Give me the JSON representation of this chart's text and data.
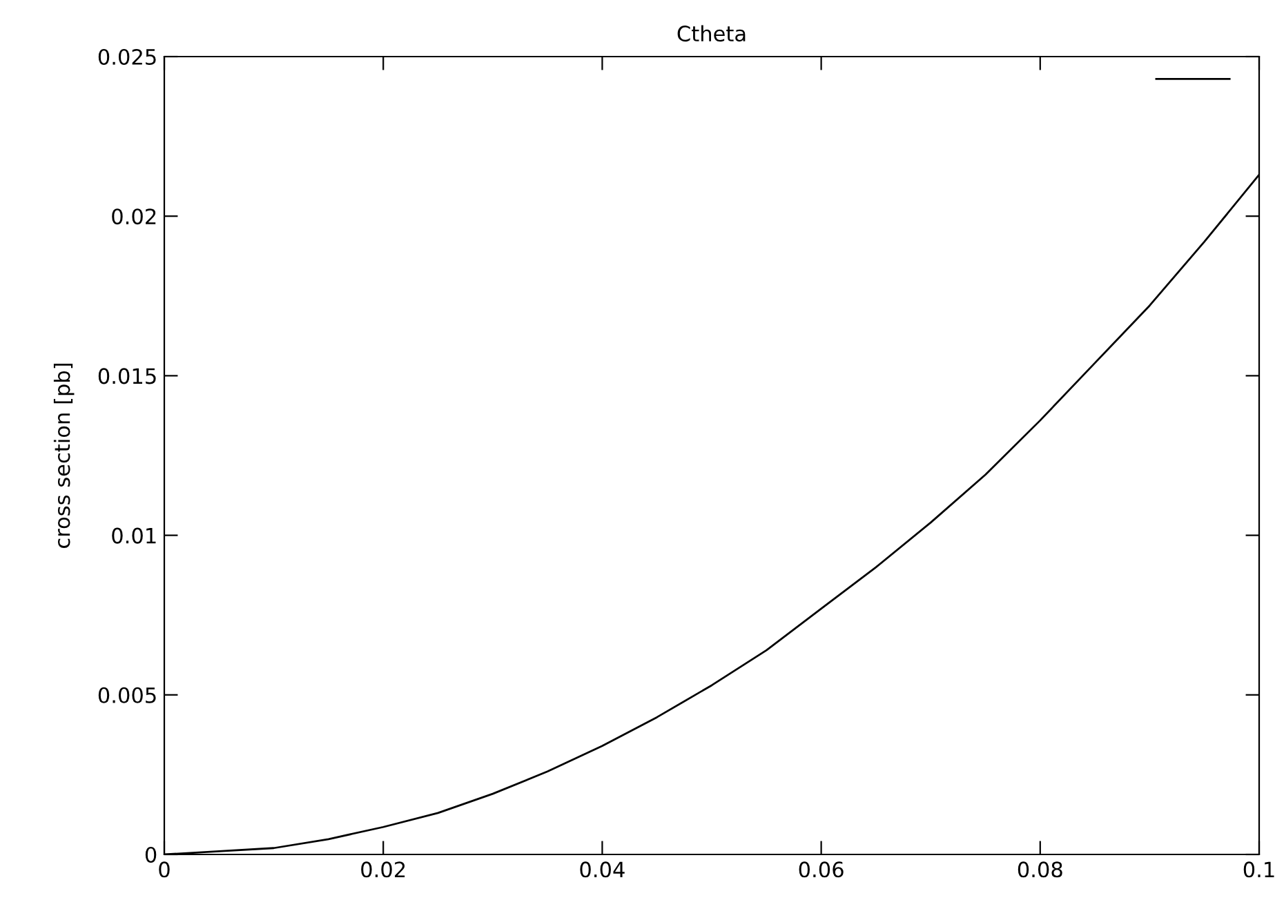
{
  "chart_data": {
    "type": "line",
    "title": "Ctheta",
    "ylabel": "cross section [pb]",
    "x": [
      0,
      0.005,
      0.01,
      0.015,
      0.02,
      0.025,
      0.03,
      0.035,
      0.04,
      0.045,
      0.05,
      0.055,
      0.06,
      0.065,
      0.07,
      0.075,
      0.08,
      0.085,
      0.09,
      0.095,
      0.1
    ],
    "series": [
      {
        "color": "#000000",
        "values": [
          0,
          0.0001,
          0.0002,
          0.00048,
          0.00086,
          0.0013,
          0.0019,
          0.0026,
          0.0034,
          0.0043,
          0.0053,
          0.0064,
          0.0077,
          0.009,
          0.0104,
          0.0119,
          0.0136,
          0.0154,
          0.0172,
          0.0192,
          0.0213
        ]
      }
    ],
    "xlim": [
      0,
      0.1
    ],
    "xticks": [
      0,
      0.02,
      0.04,
      0.06,
      0.08,
      0.1
    ],
    "ylim": [
      0,
      0.025
    ],
    "yticks": [
      0,
      0.005,
      0.01,
      0.015,
      0.02,
      0.025
    ],
    "grid": false,
    "marker": "none",
    "line_style": "solid"
  }
}
